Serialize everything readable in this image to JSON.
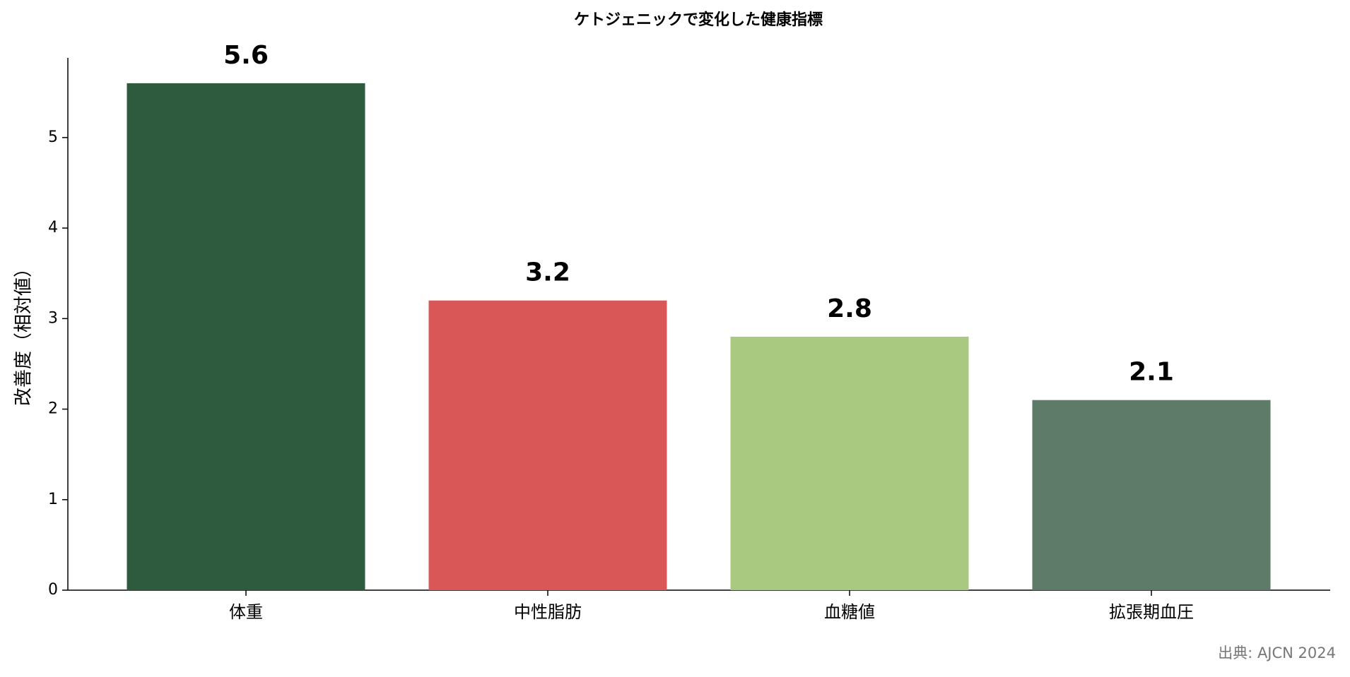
{
  "chart_data": {
    "type": "bar",
    "title": "ケトジェニックで変化した健康指標",
    "y_label": "改善度（相対値）",
    "categories": [
      "体重",
      "中性脂肪",
      "血糖値",
      "拡張期血圧"
    ],
    "values": [
      5.6,
      3.2,
      2.8,
      2.1
    ],
    "colors": [
      "#2e5a3e",
      "#d95757",
      "#a9c980",
      "#5d7b68"
    ],
    "ylim": [
      0,
      5.88
    ],
    "yticks": [
      0,
      1,
      2,
      3,
      4,
      5
    ],
    "grid": false,
    "source": "出典: AJCN 2024"
  }
}
